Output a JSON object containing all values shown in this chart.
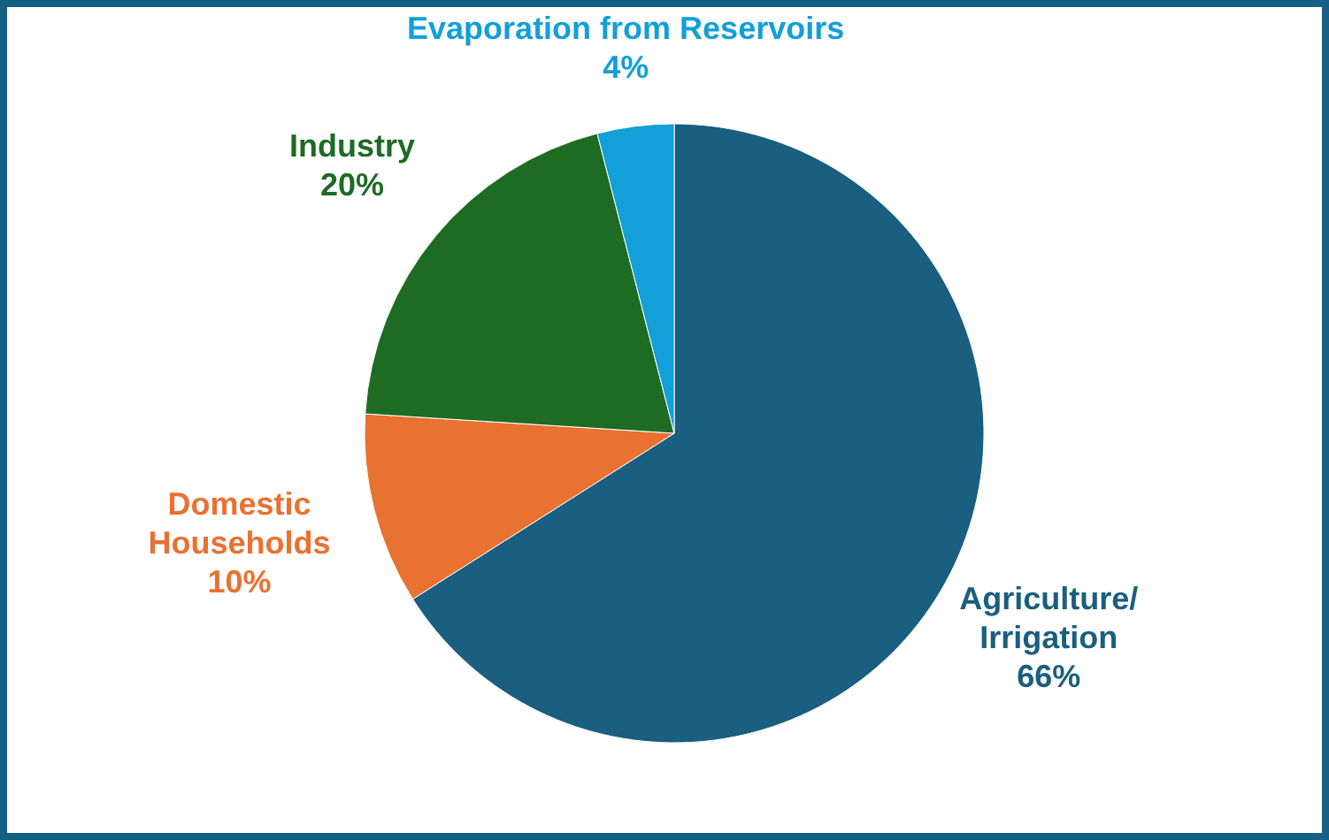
{
  "chart_data": {
    "type": "pie",
    "categories": [
      "Agriculture/\nIrrigation",
      "Domestic\nHouseholds",
      "Industry",
      "Evaporation from Reservoirs"
    ],
    "values": [
      66,
      10,
      20,
      4
    ],
    "colors": [
      "#1a5e80",
      "#e97132",
      "#1e6b24",
      "#139fd8"
    ],
    "value_labels": [
      "66%",
      "10%",
      "20%",
      "4%"
    ],
    "legend": false
  }
}
